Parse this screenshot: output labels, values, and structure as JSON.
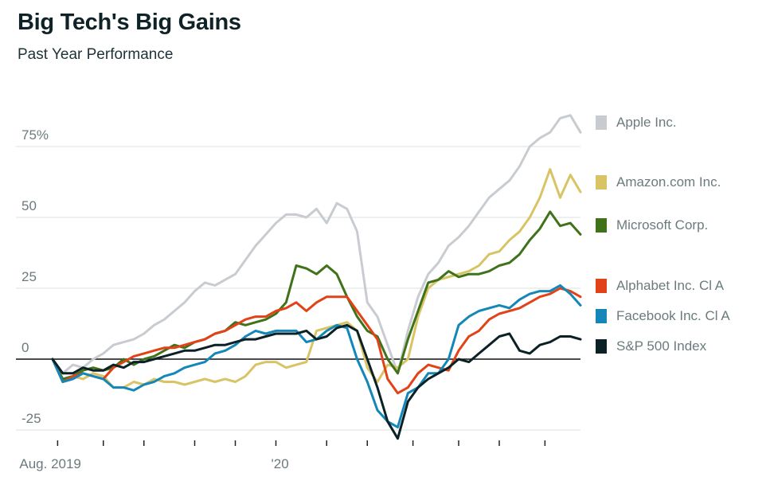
{
  "header": {
    "title": "Big Tech's Big Gains",
    "subtitle": "Past Year Performance"
  },
  "chart_data": {
    "type": "line",
    "title": "Big Tech's Big Gains",
    "subtitle": "Past Year Performance",
    "xlabel": "",
    "ylabel": "",
    "ylim": [
      -30,
      88
    ],
    "yticks": [
      {
        "value": 75,
        "label": "75%"
      },
      {
        "value": 50,
        "label": "50"
      },
      {
        "value": 25,
        "label": "25"
      },
      {
        "value": 0,
        "label": "0"
      },
      {
        "value": -25,
        "label": "-25"
      }
    ],
    "x_range_weeks": [
      0,
      52
    ],
    "xtick_labels": [
      {
        "week": 0.5,
        "label": "Aug. 2019"
      },
      {
        "week": 22,
        "label": "'20"
      }
    ],
    "xtick_marks_weeks": [
      0.5,
      5,
      9,
      14,
      18,
      22,
      27,
      31,
      35.5,
      40,
      44,
      48.5
    ],
    "grid": true,
    "legend_position": "right",
    "series": [
      {
        "name": "Apple Inc.",
        "color": "#c8ccd1",
        "values": [
          0,
          -5,
          -2,
          -3,
          0,
          2,
          5,
          6,
          7,
          9,
          12,
          14,
          17,
          20,
          24,
          27,
          26,
          28,
          30,
          35,
          40,
          44,
          48,
          51,
          51,
          50,
          53,
          48,
          55,
          53,
          45,
          20,
          15,
          5,
          -5,
          10,
          22,
          30,
          34,
          40,
          43,
          47,
          52,
          57,
          60,
          63,
          68,
          75,
          78,
          80,
          85,
          86,
          80
        ]
      },
      {
        "name": "Amazon.com Inc.",
        "color": "#d8c465",
        "values": [
          0,
          -8,
          -6,
          -7,
          -5,
          -6,
          -10,
          -10,
          -8,
          -9,
          -7,
          -8,
          -8,
          -9,
          -8,
          -7,
          -8,
          -7,
          -8,
          -6,
          -2,
          -1,
          -1,
          -3,
          -2,
          -1,
          10,
          11,
          12,
          13,
          10,
          -3,
          -8,
          -2,
          -3,
          0,
          15,
          25,
          28,
          29,
          30,
          31,
          33,
          37,
          38,
          42,
          45,
          50,
          57,
          67,
          57,
          65,
          59
        ]
      },
      {
        "name": "Microsoft Corp.",
        "color": "#3f7219",
        "values": [
          0,
          -7,
          -6,
          -4,
          -3,
          -4,
          -3,
          0,
          -2,
          0,
          1,
          3,
          5,
          4,
          6,
          7,
          9,
          10,
          13,
          12,
          13,
          14,
          16,
          20,
          33,
          32,
          30,
          33,
          30,
          22,
          15,
          10,
          8,
          0,
          -5,
          7,
          17,
          27,
          28,
          31,
          29,
          30,
          30,
          31,
          33,
          34,
          37,
          42,
          46,
          52,
          47,
          48,
          44
        ]
      },
      {
        "name": "Alphabet Inc. Cl A",
        "color": "#e14218",
        "values": [
          0,
          -8,
          -6,
          -5,
          -6,
          -7,
          -3,
          -1,
          1,
          2,
          3,
          4,
          4,
          5,
          6,
          7,
          9,
          10,
          12,
          14,
          15,
          15,
          17,
          18,
          20,
          17,
          20,
          22,
          22,
          22,
          17,
          12,
          7,
          -7,
          -12,
          -10,
          -5,
          -2,
          -3,
          -4,
          3,
          8,
          10,
          14,
          16,
          17,
          18,
          20,
          22,
          23,
          25,
          24,
          22
        ]
      },
      {
        "name": "Facebook Inc. Cl A",
        "color": "#1287b8",
        "values": [
          0,
          -8,
          -7,
          -5,
          -6,
          -7,
          -10,
          -10,
          -11,
          -9,
          -8,
          -6,
          -5,
          -3,
          -2,
          -1,
          2,
          3,
          5,
          8,
          10,
          9,
          10,
          10,
          10,
          6,
          7,
          10,
          12,
          11,
          0,
          -8,
          -18,
          -22,
          -24,
          -12,
          -10,
          -5,
          -5,
          0,
          12,
          15,
          17,
          18,
          19,
          18,
          21,
          23,
          24,
          24,
          26,
          23,
          19
        ]
      },
      {
        "name": "S&P 500 Index",
        "color": "#0c2126",
        "values": [
          0,
          -5,
          -5,
          -3,
          -4,
          -4,
          -2,
          -3,
          -1,
          -1,
          0,
          1,
          2,
          3,
          3,
          4,
          5,
          5,
          6,
          7,
          7,
          8,
          9,
          9,
          9,
          10,
          7,
          8,
          11,
          12,
          10,
          0,
          -10,
          -22,
          -28,
          -15,
          -10,
          -7,
          -5,
          -3,
          0,
          -1,
          2,
          5,
          8,
          9,
          3,
          2,
          5,
          6,
          8,
          8,
          7
        ]
      }
    ]
  }
}
